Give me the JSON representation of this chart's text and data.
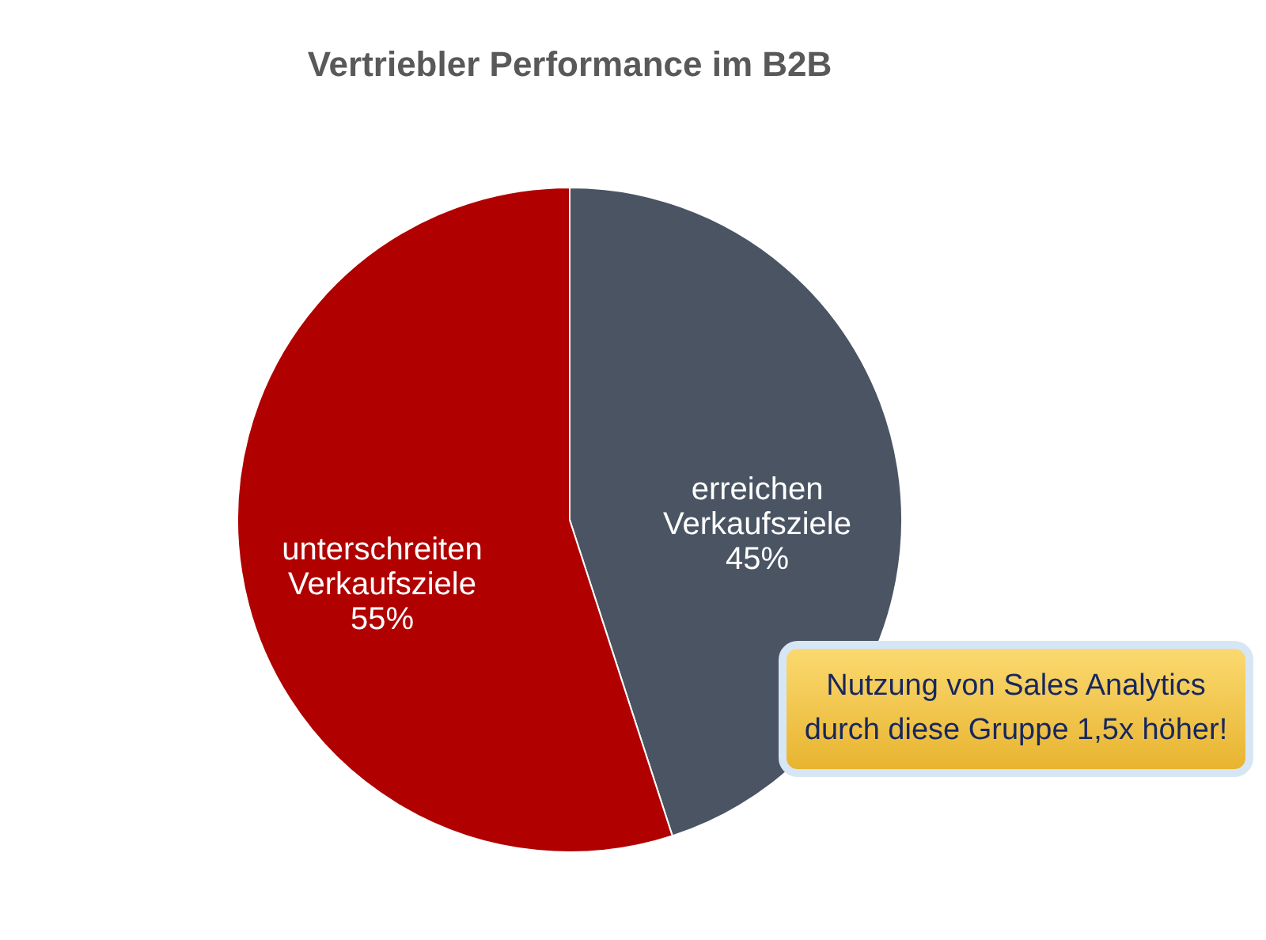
{
  "chart_data": {
    "type": "pie",
    "title": "Vertriebler Performance im B2B",
    "categories": [
      "erreichen Verkaufsziele",
      "unterschreiten Verkaufsziele"
    ],
    "values": [
      45,
      55
    ],
    "value_labels": [
      "45%",
      "55%"
    ],
    "colors": [
      "#4a5463",
      "#b00000"
    ],
    "annotations": [
      "Nutzung von Sales Analytics durch diese Gruppe 1,5x höher!"
    ]
  }
}
